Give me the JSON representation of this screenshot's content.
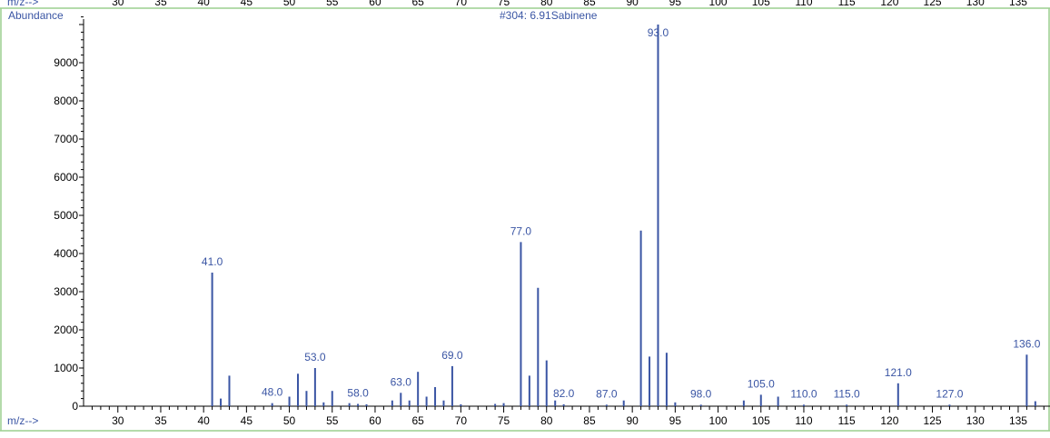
{
  "colors": {
    "frame": "#9ccf8f",
    "label": "#3a55a4",
    "peak": "#3a55a4",
    "axis": "#000000",
    "tick_text": "#000000"
  },
  "header": {
    "top_axis_label": "m/z-->",
    "top_ticks": [
      "30",
      "35",
      "40",
      "45",
      "50",
      "55",
      "60",
      "65",
      "70",
      "75",
      "80",
      "85",
      "90",
      "95",
      "100",
      "105",
      "110",
      "115",
      "120",
      "125",
      "130",
      "135"
    ]
  },
  "chart_data": {
    "type": "bar",
    "title": "#304: 6.91Sabinene",
    "ylabel": "Abundance",
    "xlabel": "m/z-->",
    "xlim": [
      26,
      141
    ],
    "ylim": [
      0,
      10200
    ],
    "xticks": [
      30,
      35,
      40,
      45,
      50,
      55,
      60,
      65,
      70,
      75,
      80,
      85,
      90,
      95,
      100,
      105,
      110,
      115,
      120,
      125,
      130,
      135
    ],
    "yticks": [
      0,
      1000,
      2000,
      3000,
      4000,
      5000,
      6000,
      7000,
      8000,
      9000
    ],
    "grid": false,
    "peaks": [
      {
        "x": 41,
        "y": 3500
      },
      {
        "x": 42,
        "y": 200
      },
      {
        "x": 43,
        "y": 800
      },
      {
        "x": 48,
        "y": 80
      },
      {
        "x": 50,
        "y": 250
      },
      {
        "x": 51,
        "y": 850
      },
      {
        "x": 52,
        "y": 400
      },
      {
        "x": 53,
        "y": 1000
      },
      {
        "x": 54,
        "y": 100
      },
      {
        "x": 55,
        "y": 400
      },
      {
        "x": 57,
        "y": 80
      },
      {
        "x": 58,
        "y": 60
      },
      {
        "x": 59,
        "y": 50
      },
      {
        "x": 62,
        "y": 150
      },
      {
        "x": 63,
        "y": 350
      },
      {
        "x": 64,
        "y": 150
      },
      {
        "x": 65,
        "y": 900
      },
      {
        "x": 66,
        "y": 250
      },
      {
        "x": 67,
        "y": 500
      },
      {
        "x": 68,
        "y": 150
      },
      {
        "x": 69,
        "y": 1050
      },
      {
        "x": 70,
        "y": 50
      },
      {
        "x": 74,
        "y": 60
      },
      {
        "x": 75,
        "y": 80
      },
      {
        "x": 77,
        "y": 4300
      },
      {
        "x": 78,
        "y": 800
      },
      {
        "x": 79,
        "y": 3100
      },
      {
        "x": 80,
        "y": 1200
      },
      {
        "x": 81,
        "y": 150
      },
      {
        "x": 82,
        "y": 50
      },
      {
        "x": 87,
        "y": 40
      },
      {
        "x": 89,
        "y": 150
      },
      {
        "x": 91,
        "y": 4600
      },
      {
        "x": 92,
        "y": 1300
      },
      {
        "x": 93,
        "y": 10000
      },
      {
        "x": 94,
        "y": 1400
      },
      {
        "x": 95,
        "y": 100
      },
      {
        "x": 98,
        "y": 40
      },
      {
        "x": 103,
        "y": 150
      },
      {
        "x": 105,
        "y": 300
      },
      {
        "x": 107,
        "y": 250
      },
      {
        "x": 110,
        "y": 40
      },
      {
        "x": 115,
        "y": 40
      },
      {
        "x": 121,
        "y": 600
      },
      {
        "x": 127,
        "y": 40
      },
      {
        "x": 136,
        "y": 1350
      },
      {
        "x": 137,
        "y": 130
      }
    ],
    "peak_labels": [
      {
        "x": 41,
        "y": 3500,
        "text": "41.0"
      },
      {
        "x": 48,
        "y": 80,
        "text": "48.0"
      },
      {
        "x": 53,
        "y": 1000,
        "text": "53.0"
      },
      {
        "x": 58,
        "y": 60,
        "text": "58.0"
      },
      {
        "x": 63,
        "y": 350,
        "text": "63.0"
      },
      {
        "x": 69,
        "y": 1050,
        "text": "69.0"
      },
      {
        "x": 77,
        "y": 4300,
        "text": "77.0"
      },
      {
        "x": 82,
        "y": 50,
        "text": "82.0"
      },
      {
        "x": 87,
        "y": 40,
        "text": "87.0"
      },
      {
        "x": 93,
        "y": 10000,
        "text": "93.0"
      },
      {
        "x": 98,
        "y": 40,
        "text": "98.0"
      },
      {
        "x": 105,
        "y": 300,
        "text": "105.0"
      },
      {
        "x": 110,
        "y": 40,
        "text": "110.0"
      },
      {
        "x": 115,
        "y": 40,
        "text": "115.0"
      },
      {
        "x": 121,
        "y": 600,
        "text": "121.0"
      },
      {
        "x": 127,
        "y": 40,
        "text": "127.0"
      },
      {
        "x": 136,
        "y": 1350,
        "text": "136.0"
      }
    ]
  }
}
